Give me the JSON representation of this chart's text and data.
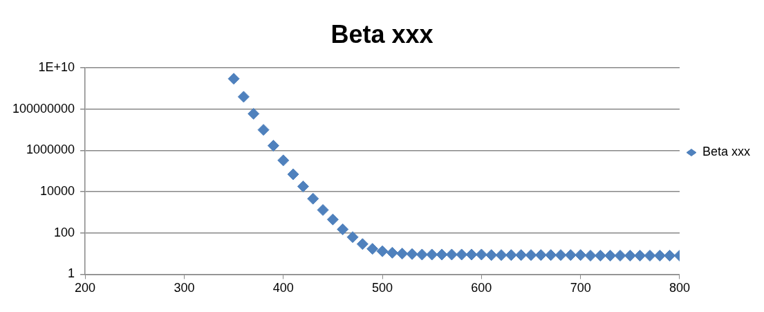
{
  "chart_data": {
    "type": "scatter",
    "title": "Beta xxx",
    "x": [
      350,
      360,
      370,
      380,
      390,
      400,
      410,
      420,
      430,
      440,
      450,
      460,
      470,
      480,
      490,
      500,
      510,
      520,
      530,
      540,
      550,
      560,
      570,
      580,
      590,
      600,
      610,
      620,
      630,
      640,
      650,
      660,
      670,
      680,
      690,
      700,
      710,
      720,
      730,
      740,
      750,
      760,
      770,
      780,
      790,
      800
    ],
    "series": [
      {
        "name": "Beta xxx",
        "color": "#4f81bd",
        "values": [
          3000000000,
          400000000,
          60000000,
          10000000,
          1700000,
          330000,
          70000,
          18000,
          4600,
          1300,
          450,
          150,
          63,
          29,
          17,
          13,
          11,
          10,
          9.5,
          9,
          9,
          9,
          9,
          9,
          9,
          9,
          8.5,
          8.5,
          8.5,
          8.5,
          8.5,
          8.5,
          8.5,
          8.5,
          8.5,
          8.5,
          8,
          8,
          8,
          8,
          8,
          8,
          8,
          8,
          8,
          8
        ]
      }
    ],
    "xlim": [
      200,
      800
    ],
    "xticks": [
      200,
      300,
      400,
      500,
      600,
      700,
      800
    ],
    "ylim": [
      1,
      10000000000
    ],
    "yticks": [
      1,
      100,
      10000,
      1000000,
      100000000,
      {
        "value": 10000000000,
        "label": "1E+10"
      }
    ],
    "log": "y",
    "grid": "y",
    "legend": "right",
    "marker": "diamond"
  }
}
